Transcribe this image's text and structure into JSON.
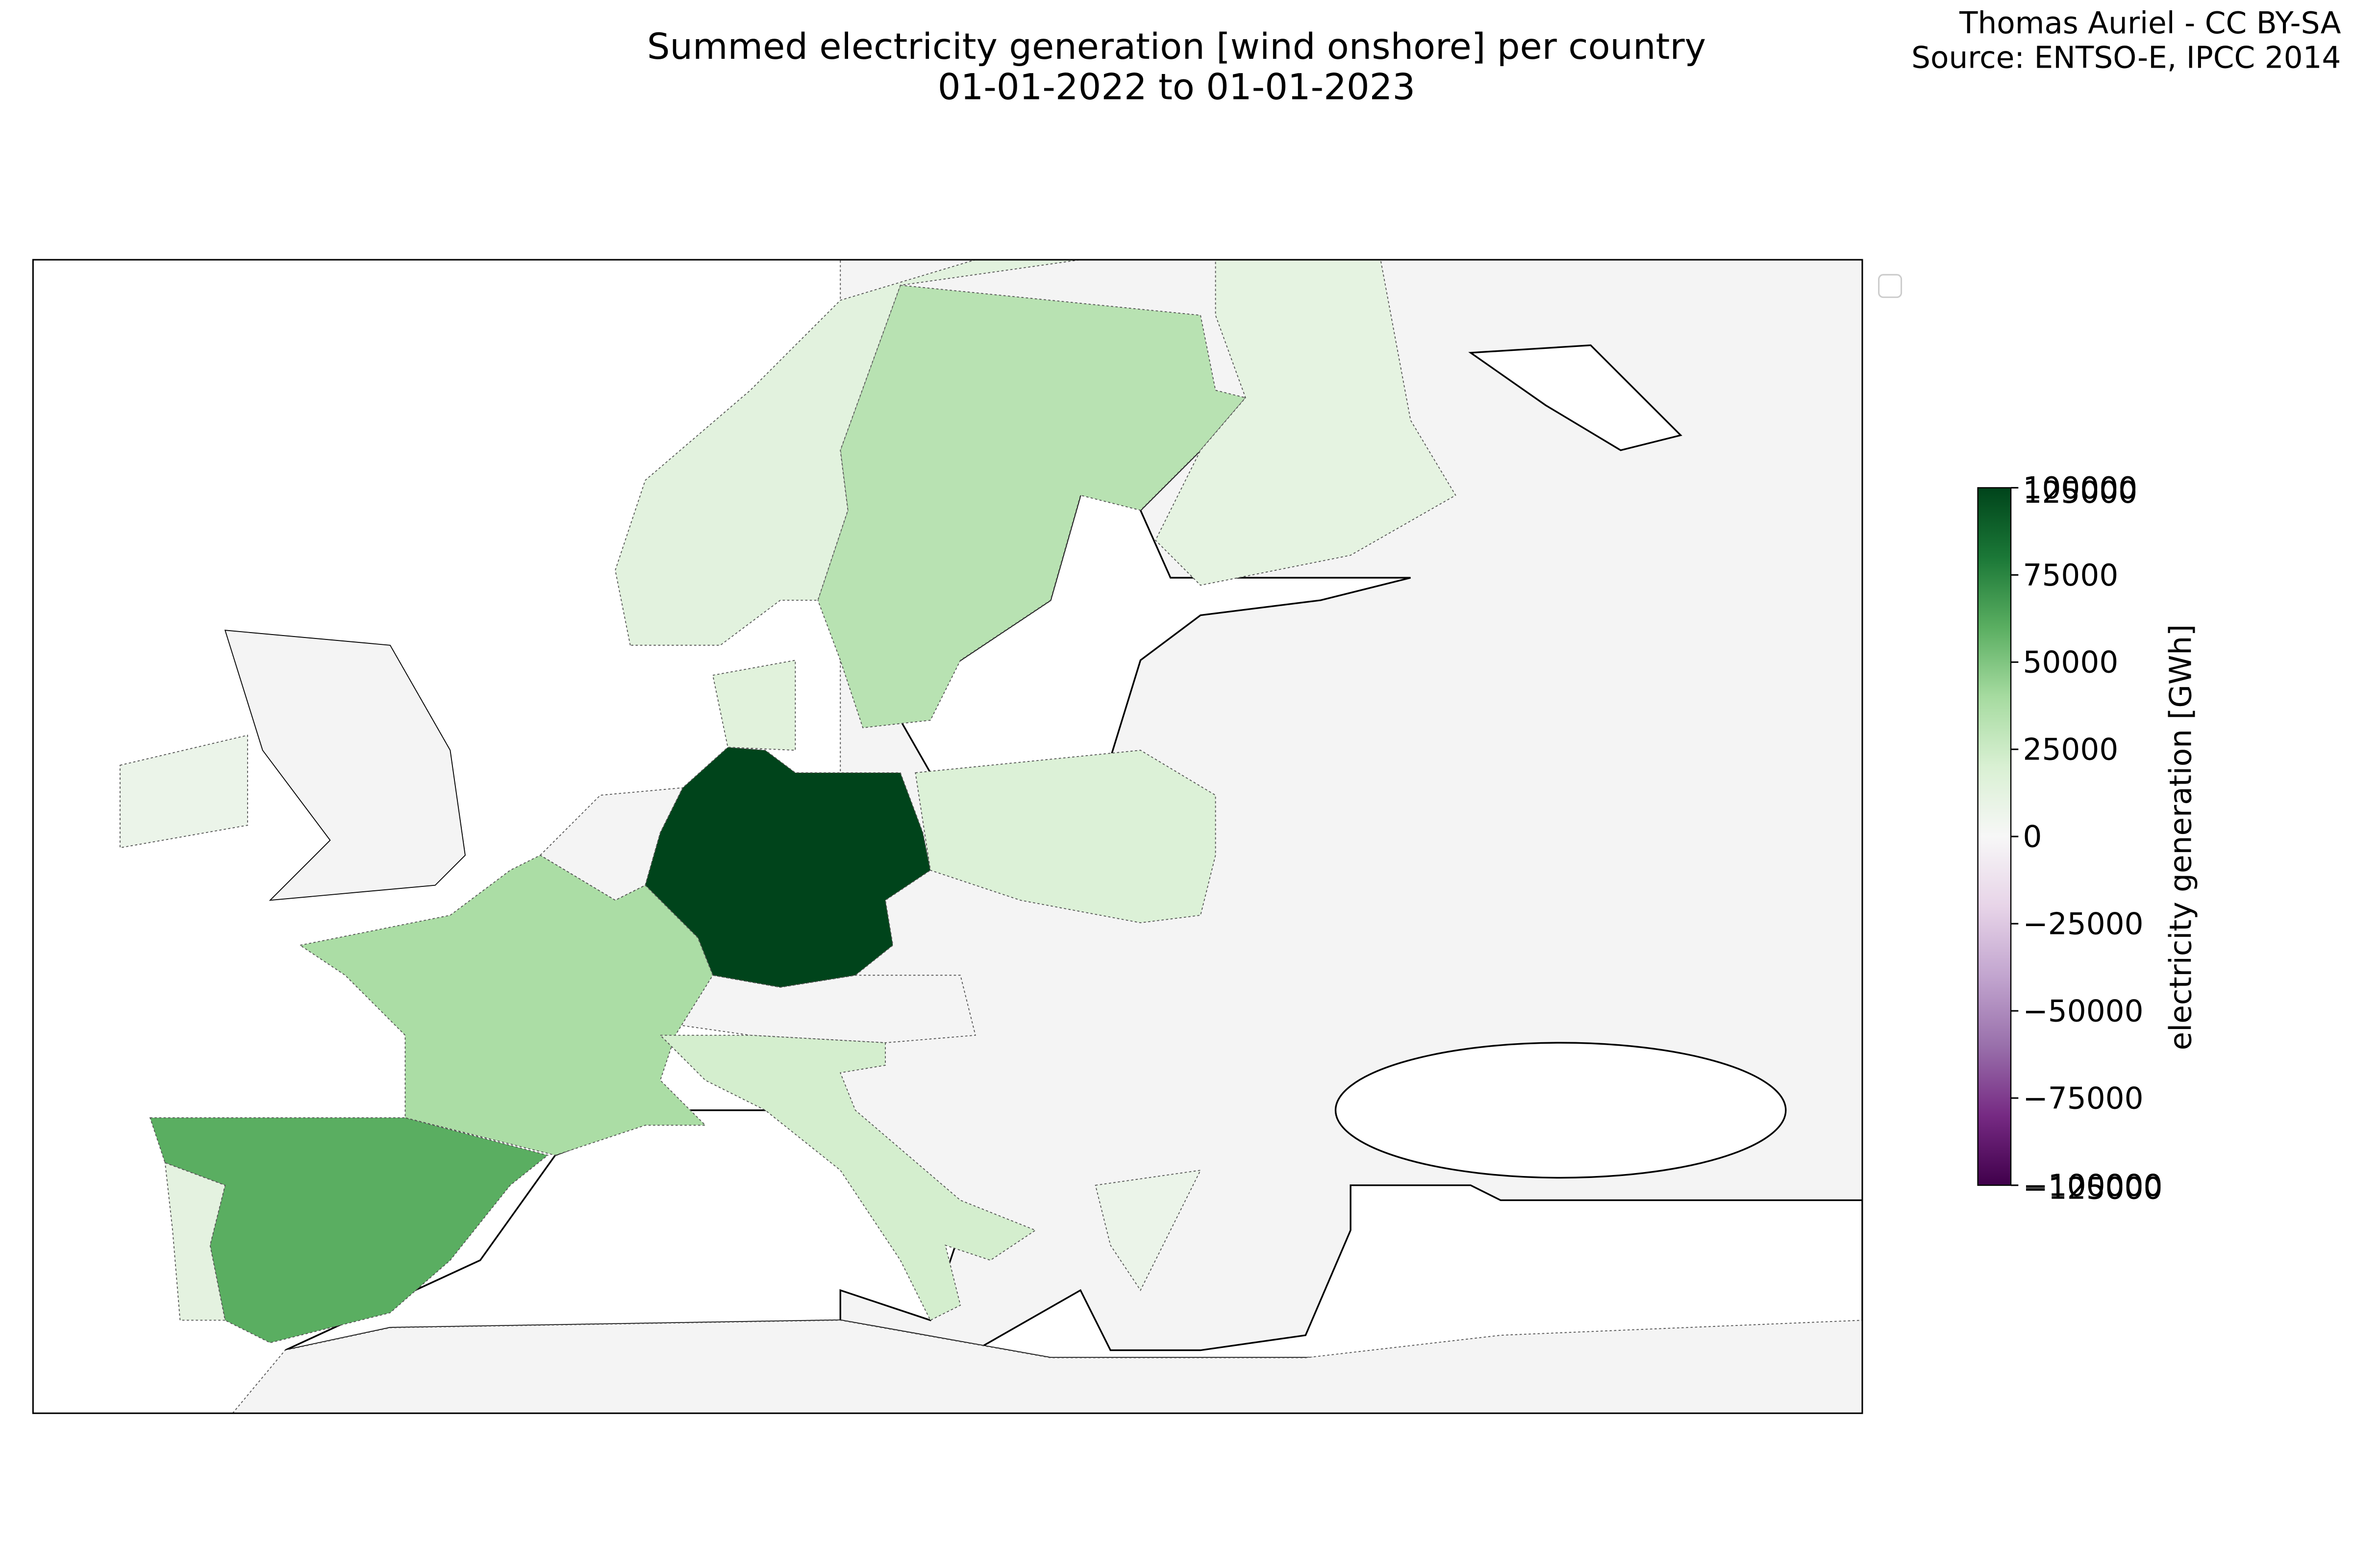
{
  "chart_data": {
    "type": "choropleth",
    "title": "Summed electricity generation [wind onshore] per country",
    "subtitle": "01-01-2022 to 01-01-2023",
    "credits": [
      "Thomas Auriel - CC BY-SA",
      "Source: ENTSO-E, IPCC 2014"
    ],
    "colorbar_label": "electricity generation [GWh]",
    "clim": [
      -100000,
      100000
    ],
    "colormap": [
      "#40004b",
      "#762a83",
      "#9970ab",
      "#c2a5cf",
      "#e7d4e8",
      "#f7f7f7",
      "#d9f0d3",
      "#a6dba0",
      "#5aae61",
      "#1b7837",
      "#00441b"
    ],
    "ticks": [
      {
        "value": -100000,
        "label": "−100000"
      },
      {
        "value": -75000,
        "label": "−75000"
      },
      {
        "value": -50000,
        "label": "−50000"
      },
      {
        "value": -25000,
        "label": "−25000"
      },
      0,
      25000,
      50000,
      75000,
      100000
    ],
    "end_labels": [
      "125000",
      "−125000"
    ],
    "regions": [
      {
        "value": 105000
      },
      {
        "value": 60000
      },
      {
        "value": 13000
      },
      {
        "value": 38000
      },
      {
        "value": 22000
      },
      {
        "value": 33000
      },
      {
        "value": 14000
      },
      {
        "value": 12000
      },
      {
        "value": 18000
      },
      {
        "value": 15000
      },
      {
        "value": 8000
      },
      {
        "value": 8000
      }
    ]
  }
}
